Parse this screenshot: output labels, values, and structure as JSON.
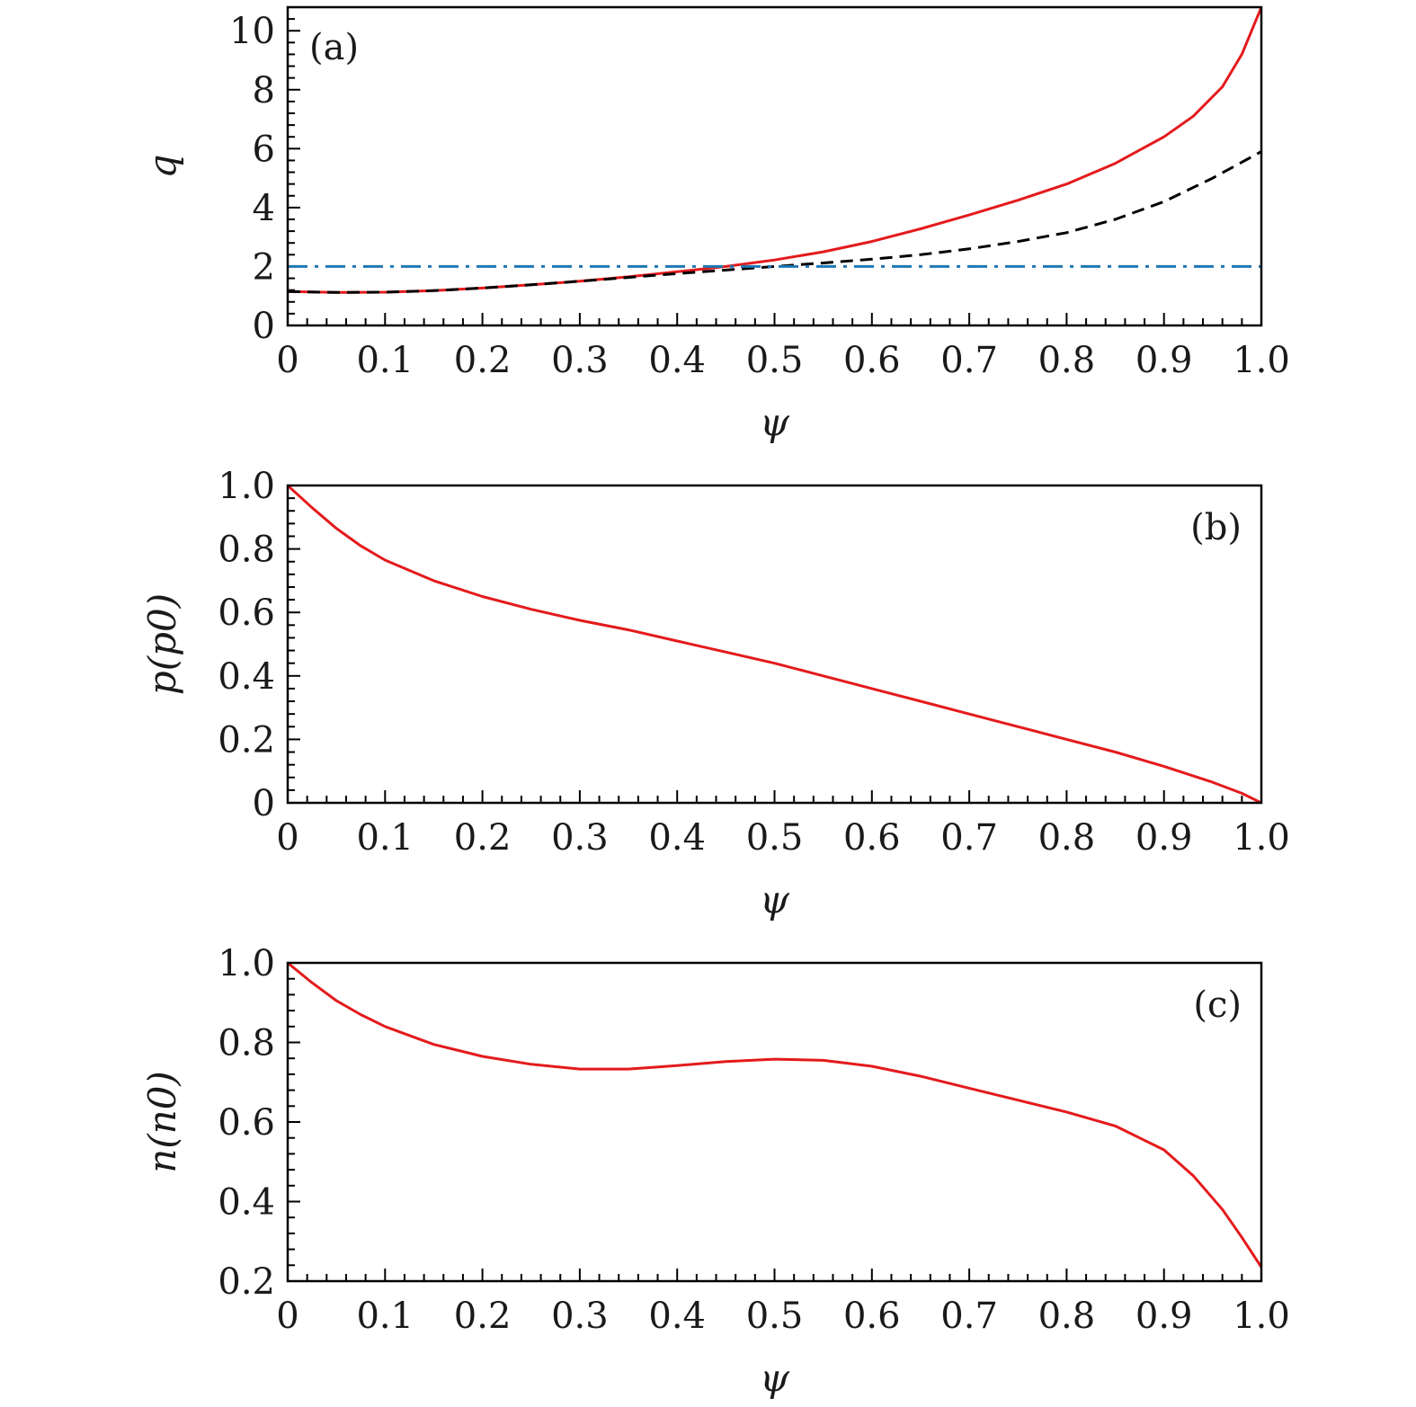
{
  "chart_data": [
    {
      "type": "line",
      "panel_label": "(a)",
      "xlabel": "ψ",
      "ylabel": "q",
      "xlim": [
        0,
        1
      ],
      "ylim": [
        0,
        10.8
      ],
      "xticks": [
        0,
        0.1,
        0.2,
        0.3,
        0.4,
        0.5,
        0.6,
        0.7,
        0.8,
        0.9,
        1.0
      ],
      "xtick_labels": [
        "0",
        "0.1",
        "0.2",
        "0.3",
        "0.4",
        "0.5",
        "0.6",
        "0.7",
        "0.8",
        "0.9",
        "1.0"
      ],
      "yticks": [
        0,
        2,
        4,
        6,
        8,
        10
      ],
      "ytick_labels": [
        "0",
        "2",
        "4",
        "6",
        "8",
        "10"
      ],
      "label_position": "top-left",
      "series": [
        {
          "color": "#e41a1c",
          "style": "solid",
          "x": [
            0,
            0.05,
            0.1,
            0.15,
            0.2,
            0.25,
            0.3,
            0.35,
            0.4,
            0.45,
            0.5,
            0.55,
            0.6,
            0.65,
            0.7,
            0.75,
            0.8,
            0.85,
            0.9,
            0.93,
            0.96,
            0.98,
            1.0
          ],
          "y": [
            1.15,
            1.12,
            1.13,
            1.18,
            1.27,
            1.38,
            1.5,
            1.65,
            1.82,
            2.0,
            2.22,
            2.5,
            2.85,
            3.28,
            3.75,
            4.25,
            4.8,
            5.5,
            6.4,
            7.1,
            8.1,
            9.2,
            10.8
          ]
        },
        {
          "color": "#000000",
          "style": "dashed",
          "x": [
            0,
            0.05,
            0.1,
            0.15,
            0.2,
            0.25,
            0.3,
            0.35,
            0.4,
            0.45,
            0.5,
            0.55,
            0.6,
            0.65,
            0.7,
            0.75,
            0.8,
            0.85,
            0.9,
            0.95,
            1.0
          ],
          "y": [
            1.15,
            1.12,
            1.13,
            1.18,
            1.27,
            1.38,
            1.5,
            1.63,
            1.76,
            1.88,
            2.0,
            2.12,
            2.25,
            2.4,
            2.6,
            2.85,
            3.15,
            3.6,
            4.2,
            5.0,
            5.9
          ]
        },
        {
          "color": "#1f77b4",
          "style": "dashdot",
          "x": [
            0,
            1.0
          ],
          "y": [
            2,
            2
          ]
        }
      ]
    },
    {
      "type": "line",
      "panel_label": "(b)",
      "xlabel": "ψ",
      "ylabel": "p(p0)",
      "xlim": [
        0,
        1
      ],
      "ylim": [
        0,
        1
      ],
      "xticks": [
        0,
        0.1,
        0.2,
        0.3,
        0.4,
        0.5,
        0.6,
        0.7,
        0.8,
        0.9,
        1.0
      ],
      "xtick_labels": [
        "0",
        "0.1",
        "0.2",
        "0.3",
        "0.4",
        "0.5",
        "0.6",
        "0.7",
        "0.8",
        "0.9",
        "1.0"
      ],
      "yticks": [
        0,
        0.2,
        0.4,
        0.6,
        0.8,
        1.0
      ],
      "ytick_labels": [
        "0",
        "0.2",
        "0.4",
        "0.6",
        "0.8",
        "1.0"
      ],
      "label_position": "top-right",
      "series": [
        {
          "color": "#e41a1c",
          "style": "solid",
          "x": [
            0,
            0.025,
            0.05,
            0.075,
            0.1,
            0.15,
            0.2,
            0.25,
            0.3,
            0.35,
            0.4,
            0.45,
            0.5,
            0.55,
            0.6,
            0.65,
            0.7,
            0.75,
            0.8,
            0.85,
            0.9,
            0.95,
            0.98,
            1.0
          ],
          "y": [
            1.0,
            0.93,
            0.865,
            0.81,
            0.765,
            0.7,
            0.65,
            0.61,
            0.575,
            0.545,
            0.51,
            0.475,
            0.44,
            0.4,
            0.36,
            0.32,
            0.28,
            0.24,
            0.2,
            0.16,
            0.115,
            0.065,
            0.03,
            0.0
          ]
        }
      ]
    },
    {
      "type": "line",
      "panel_label": "(c)",
      "xlabel": "ψ",
      "ylabel": "n(n0)",
      "xlim": [
        0,
        1
      ],
      "ylim": [
        0.2,
        1
      ],
      "xticks": [
        0,
        0.1,
        0.2,
        0.3,
        0.4,
        0.5,
        0.6,
        0.7,
        0.8,
        0.9,
        1.0
      ],
      "xtick_labels": [
        "0",
        "0.1",
        "0.2",
        "0.3",
        "0.4",
        "0.5",
        "0.6",
        "0.7",
        "0.8",
        "0.9",
        "1.0"
      ],
      "yticks": [
        0.2,
        0.4,
        0.6,
        0.8,
        1.0
      ],
      "ytick_labels": [
        "0.2",
        "0.4",
        "0.6",
        "0.8",
        "1.0"
      ],
      "label_position": "top-right",
      "series": [
        {
          "color": "#e41a1c",
          "style": "solid",
          "x": [
            0,
            0.025,
            0.05,
            0.075,
            0.1,
            0.15,
            0.2,
            0.25,
            0.3,
            0.35,
            0.4,
            0.45,
            0.5,
            0.55,
            0.6,
            0.65,
            0.7,
            0.75,
            0.8,
            0.85,
            0.9,
            0.93,
            0.96,
            0.98,
            1.0
          ],
          "y": [
            1.0,
            0.95,
            0.905,
            0.87,
            0.84,
            0.795,
            0.765,
            0.745,
            0.733,
            0.733,
            0.742,
            0.752,
            0.758,
            0.755,
            0.74,
            0.715,
            0.685,
            0.655,
            0.625,
            0.59,
            0.53,
            0.465,
            0.38,
            0.31,
            0.235
          ]
        }
      ]
    }
  ]
}
